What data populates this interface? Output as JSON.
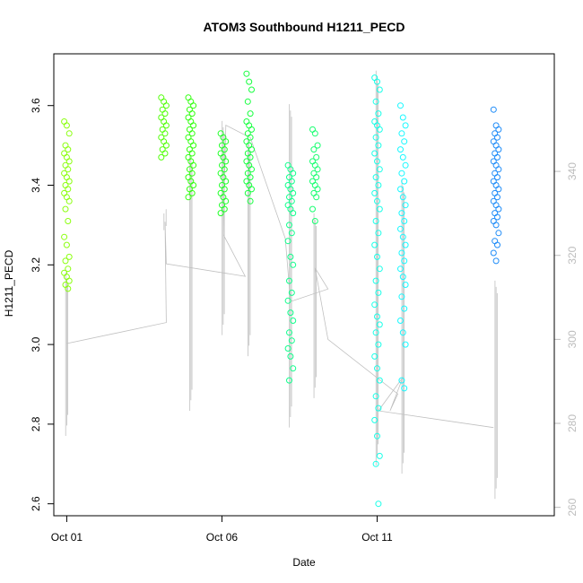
{
  "chart_data": {
    "type": "scatter",
    "title": "ATOM3 Southbound H1211_PECD",
    "xlabel": "Date",
    "ylabel": "H1211_PECD",
    "x_axis": {
      "type": "date",
      "range": [
        "2014-09-30T14:00",
        "2014-10-16T17:00"
      ],
      "ticks": [
        "Oct 01",
        "Oct 06",
        "Oct 11"
      ]
    },
    "y_left": {
      "range": [
        2.57,
        3.73
      ],
      "ticks": [
        "2.6",
        "2.8",
        "3.0",
        "3.2",
        "3.4",
        "3.6"
      ]
    },
    "y_right": {
      "label": "",
      "range": [
        258,
        368
      ],
      "ticks": [
        "260",
        "280",
        "300",
        "320",
        "340"
      ],
      "color": "#bdbdbd"
    },
    "grid": false,
    "legend": "none",
    "marker": "open-circle",
    "colors": {
      "points_gradient": [
        "#7FFF00",
        "#00FF00",
        "#00FF80",
        "#00FFFF",
        "#0080FF"
      ],
      "line": "#c0c0c0"
    },
    "point_clusters": [
      {
        "date": "2014-10-01T00:00",
        "color": "#8cff10",
        "values": [
          3.56,
          3.55,
          3.53,
          3.5,
          3.49,
          3.48,
          3.47,
          3.46,
          3.45,
          3.44,
          3.43,
          3.42,
          3.41,
          3.4,
          3.39,
          3.38,
          3.37,
          3.36,
          3.34,
          3.31,
          3.27,
          3.25,
          3.22,
          3.21,
          3.19,
          3.18,
          3.17,
          3.16,
          3.15,
          3.14
        ]
      },
      {
        "date": "2014-10-04T03:00",
        "color": "#55ff0d",
        "values": [
          3.62,
          3.61,
          3.6,
          3.59,
          3.58,
          3.57,
          3.56,
          3.55,
          3.54,
          3.53,
          3.52,
          3.51,
          3.5,
          3.49,
          3.48,
          3.47
        ]
      },
      {
        "date": "2014-10-05T00:00",
        "color": "#32ff10",
        "values": [
          3.62,
          3.61,
          3.6,
          3.59,
          3.58,
          3.57,
          3.56,
          3.55,
          3.54,
          3.53,
          3.52,
          3.51,
          3.5,
          3.49,
          3.48,
          3.47,
          3.46,
          3.45,
          3.44,
          3.43,
          3.42,
          3.41,
          3.4,
          3.39,
          3.38,
          3.37
        ]
      },
      {
        "date": "2014-10-06T01:00",
        "color": "#20ff28",
        "values": [
          3.53,
          3.52,
          3.51,
          3.5,
          3.49,
          3.48,
          3.47,
          3.46,
          3.45,
          3.44,
          3.43,
          3.42,
          3.41,
          3.4,
          3.39,
          3.38,
          3.37,
          3.36,
          3.35,
          3.34,
          3.33
        ]
      },
      {
        "date": "2014-10-06T21:00",
        "color": "#18ff40",
        "values": [
          3.68,
          3.66,
          3.64,
          3.61,
          3.58,
          3.56,
          3.55,
          3.54,
          3.53,
          3.52,
          3.51,
          3.5,
          3.49,
          3.48,
          3.47,
          3.46,
          3.45,
          3.44,
          3.43,
          3.42,
          3.41,
          3.4,
          3.39,
          3.38,
          3.36
        ]
      },
      {
        "date": "2014-10-08T05:00",
        "color": "#10ff8c",
        "values": [
          3.45,
          3.44,
          3.43,
          3.42,
          3.41,
          3.4,
          3.39,
          3.38,
          3.37,
          3.36,
          3.35,
          3.34,
          3.33,
          3.3,
          3.28,
          3.26,
          3.22,
          3.2,
          3.16,
          3.13,
          3.11,
          3.08,
          3.06,
          3.03,
          3.01,
          2.99,
          2.97,
          2.94,
          2.91
        ]
      },
      {
        "date": "2014-10-09T00:00",
        "color": "#18ff70",
        "values": [
          3.54,
          3.53,
          3.5,
          3.49,
          3.47,
          3.46,
          3.45,
          3.44,
          3.43,
          3.42,
          3.41,
          3.4,
          3.39,
          3.38,
          3.37,
          3.34,
          3.31
        ]
      },
      {
        "date": "2014-10-11T00:00",
        "color": "#18ffe8",
        "values": [
          3.67,
          3.66,
          3.64,
          3.61,
          3.58,
          3.56,
          3.55,
          3.54,
          3.52,
          3.5,
          3.48,
          3.46,
          3.44,
          3.42,
          3.4,
          3.38,
          3.36,
          3.34,
          3.31,
          3.28,
          3.25,
          3.22,
          3.19,
          3.16,
          3.13,
          3.1,
          3.07,
          3.05,
          3.03,
          3.0,
          2.97,
          2.94,
          2.91,
          2.87,
          2.84,
          2.81,
          2.77,
          2.72,
          2.7,
          2.6
        ]
      },
      {
        "date": "2014-10-11T20:00",
        "color": "#18f8ff",
        "values": [
          3.6,
          3.57,
          3.55,
          3.53,
          3.51,
          3.49,
          3.47,
          3.45,
          3.43,
          3.41,
          3.39,
          3.37,
          3.35,
          3.33,
          3.31,
          3.29,
          3.27,
          3.25,
          3.23,
          3.21,
          3.19,
          3.17,
          3.15,
          3.12,
          3.09,
          3.06,
          3.03,
          3.0,
          2.91,
          2.89
        ]
      },
      {
        "date": "2014-10-14T20:00",
        "color": "#1f8cf8",
        "values": [
          3.59,
          3.55,
          3.54,
          3.53,
          3.52,
          3.51,
          3.5,
          3.49,
          3.48,
          3.47,
          3.46,
          3.45,
          3.44,
          3.43,
          3.42,
          3.41,
          3.4,
          3.39,
          3.38,
          3.37,
          3.36,
          3.35,
          3.34,
          3.33,
          3.32,
          3.31,
          3.3,
          3.28,
          3.26,
          3.25,
          3.23,
          3.21
        ]
      }
    ],
    "line_series": {
      "name": "",
      "axis": "right",
      "trend": [
        [
          "2014-10-01T00:00",
          299
        ],
        [
          "2014-10-04T05:00",
          304
        ],
        [
          "2014-10-04T04:00",
          328
        ],
        [
          "2014-10-04T05:00",
          318
        ],
        [
          "2014-10-06T18:00",
          315
        ],
        [
          "2014-10-06T01:00",
          325
        ],
        [
          "2014-10-06T03:00",
          351
        ],
        [
          "2014-10-06T22:00",
          348
        ],
        [
          "2014-10-08T01:00",
          324
        ],
        [
          "2014-10-08T05:00",
          309
        ],
        [
          "2014-10-09T10:00",
          312
        ],
        [
          "2014-10-09T00:00",
          317
        ],
        [
          "2014-10-09T10:00",
          300
        ],
        [
          "2014-10-11T16:00",
          287
        ],
        [
          "2014-10-11T10:00",
          283
        ],
        [
          "2014-10-11T20:00",
          291
        ],
        [
          "2014-10-11T01:00",
          283
        ],
        [
          "2014-10-14T18:00",
          279
        ]
      ],
      "spikes": [
        {
          "date": "2014-10-01T00:00",
          "high": 316,
          "low": 277
        },
        {
          "date": "2014-10-04T04:00",
          "high": 330,
          "low": 326
        },
        {
          "date": "2014-10-05T00:00",
          "high": 345,
          "low": 283
        },
        {
          "date": "2014-10-06T01:00",
          "high": 352,
          "low": 301
        },
        {
          "date": "2014-10-06T21:00",
          "high": 348,
          "low": 296
        },
        {
          "date": "2014-10-08T05:00",
          "high": 356,
          "low": 279
        },
        {
          "date": "2014-10-09T00:00",
          "high": 330,
          "low": 286
        },
        {
          "date": "2014-10-11T00:00",
          "high": 364,
          "low": 270
        },
        {
          "date": "2014-10-11T20:00",
          "high": 338,
          "low": 268
        },
        {
          "date": "2014-10-14T20:00",
          "high": 314,
          "low": 262
        }
      ]
    }
  }
}
